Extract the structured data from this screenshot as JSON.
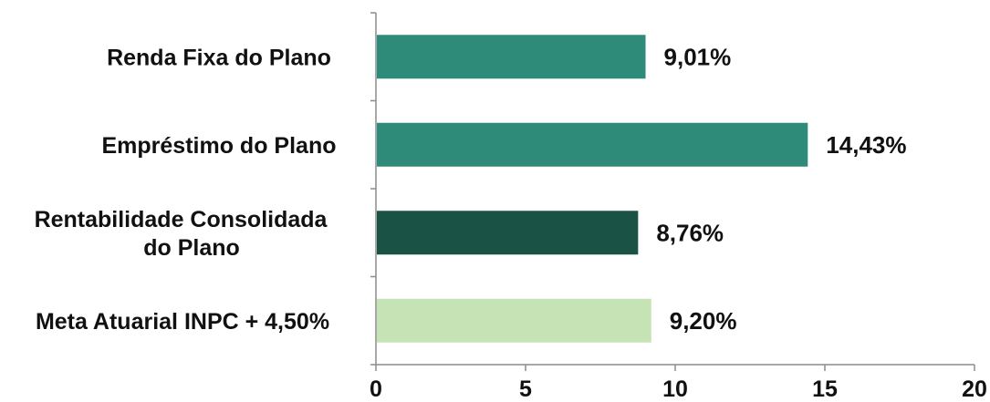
{
  "chart_data": {
    "type": "bar",
    "orientation": "horizontal",
    "categories": [
      [
        "Renda Fixa do Plano"
      ],
      [
        "Empréstimo do Plano"
      ],
      [
        "Rentabilidade Consolidada",
        "do Plano"
      ],
      [
        "Meta Atuarial INPC + 4,50%"
      ]
    ],
    "values": [
      9.01,
      14.43,
      8.76,
      9.2
    ],
    "value_labels": [
      "9,01%",
      "14,43%",
      "8,76%",
      "9,20%"
    ],
    "bar_colors": [
      "#2e8b7a",
      "#2e8b7a",
      "#1b5246",
      "#c5e3b5"
    ],
    "xlim": [
      0,
      20
    ],
    "xticks": [
      0,
      5,
      10,
      15,
      20
    ],
    "title": "",
    "xlabel": "",
    "ylabel": "",
    "grid": false,
    "legend": "none"
  }
}
